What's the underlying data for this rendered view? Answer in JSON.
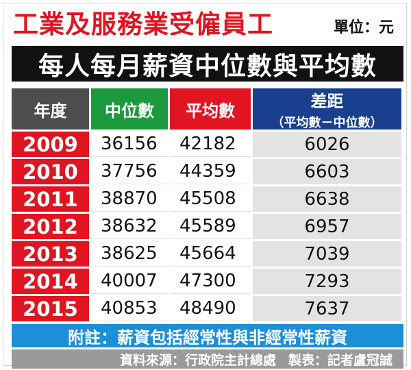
{
  "title": "工業及服務業受僱員工",
  "unit": "單位：元",
  "subtitle": "每人每月薪資中位數與平均數",
  "headers": {
    "year": "年度",
    "median": "中位數",
    "average": "平均數",
    "diff": "差距",
    "diff_sub": "（平均數－中位數）"
  },
  "chart_data": {
    "type": "table",
    "title": "每人每月薪資中位數與平均數",
    "columns": [
      "年度",
      "中位數",
      "平均數",
      "差距（平均數－中位數）"
    ],
    "rows": [
      [
        "2009",
        "36156",
        "42182",
        "6026"
      ],
      [
        "2010",
        "37756",
        "44359",
        "6603"
      ],
      [
        "2011",
        "38870",
        "45508",
        "6638"
      ],
      [
        "2012",
        "38632",
        "45589",
        "6957"
      ],
      [
        "2013",
        "38625",
        "45664",
        "7039"
      ],
      [
        "2014",
        "40007",
        "47300",
        "7293"
      ],
      [
        "2015",
        "40853",
        "48490",
        "7637"
      ]
    ]
  },
  "note": "附註：薪資包括經常性與非經常性薪資",
  "source": {
    "data_source": "資料來源：行政院主計總處",
    "credit": "製表：記者盧冠誠"
  },
  "colors": {
    "red": "#e01521",
    "green": "#1a9a3c",
    "navy": "#1a3f8f",
    "dark_gray": "#4d4d4d",
    "light_gray": "#e3e3e3",
    "blue": "#1d8ed8",
    "mid_gray": "#9a9a9a",
    "black": "#111111"
  }
}
